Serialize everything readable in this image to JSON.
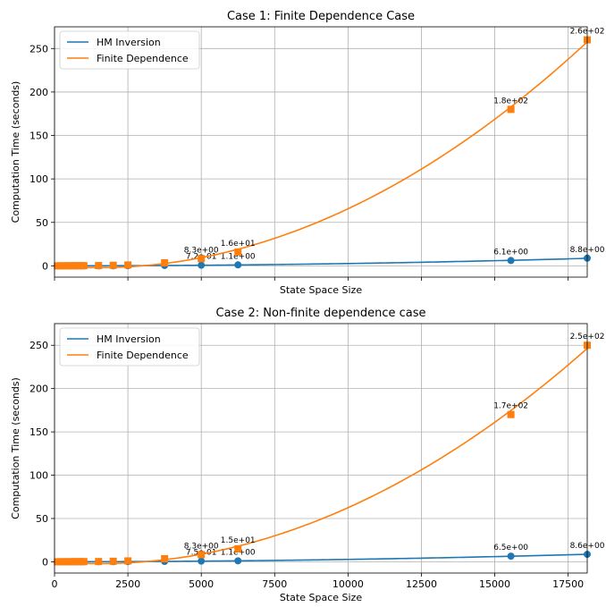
{
  "chart_data": [
    {
      "type": "line",
      "title": "Case 1: Finite Dependence Case",
      "xlabel": "State Space Size",
      "ylabel": "Computation Time (seconds)",
      "xlim": [
        0,
        18150
      ],
      "ylim": [
        -13,
        275
      ],
      "xticks": [
        0,
        2500,
        5000,
        7500,
        10000,
        12500,
        15000,
        17500
      ],
      "xticklabels": [],
      "yticks": [
        0,
        50,
        100,
        150,
        200,
        250
      ],
      "yticklabels": [
        "0",
        "50",
        "100",
        "150",
        "200",
        "250"
      ],
      "grid": true,
      "legend": "top-left",
      "series": [
        {
          "name": "HM Inversion",
          "color": "#1f77b4",
          "marker": "circle",
          "x": [
            100,
            200,
            300,
            400,
            500,
            600,
            700,
            800,
            900,
            1000,
            1500,
            2000,
            2500,
            3750,
            5000,
            6250,
            15550,
            18150
          ],
          "y": [
            0.001,
            0.002,
            0.003,
            0.005,
            0.008,
            0.01,
            0.015,
            0.02,
            0.025,
            0.03,
            0.05,
            0.1,
            0.2,
            0.4,
            0.72,
            1.1,
            6.1,
            8.8
          ],
          "labeled_points": [
            {
              "x": 5000,
              "y": 0.72,
              "label": "7.2e-01"
            },
            {
              "x": 6250,
              "y": 1.1,
              "label": "1.1e+00"
            },
            {
              "x": 15550,
              "y": 6.1,
              "label": "6.1e+00"
            },
            {
              "x": 18150,
              "y": 8.8,
              "label": "8.8e+00"
            }
          ]
        },
        {
          "name": "Finite Dependence",
          "color": "#ff7f0e",
          "marker": "square",
          "x": [
            100,
            200,
            300,
            400,
            500,
            600,
            700,
            800,
            900,
            1000,
            1500,
            2000,
            2500,
            3750,
            5000,
            6250,
            15550,
            18150
          ],
          "y": [
            0.01,
            0.02,
            0.03,
            0.05,
            0.07,
            0.1,
            0.12,
            0.15,
            0.18,
            0.2,
            0.3,
            0.6,
            1.0,
            3.5,
            8.3,
            16,
            180,
            260
          ],
          "labeled_points": [
            {
              "x": 5000,
              "y": 8.3,
              "label": "8.3e+00"
            },
            {
              "x": 6250,
              "y": 16,
              "label": "1.6e+01"
            },
            {
              "x": 15550,
              "y": 180,
              "label": "1.8e+02"
            },
            {
              "x": 18150,
              "y": 260,
              "label": "2.6e+02"
            }
          ]
        }
      ]
    },
    {
      "type": "line",
      "title": "Case 2: Non-finite dependence case",
      "xlabel": "State Space Size",
      "ylabel": "Computation Time (seconds)",
      "xlim": [
        0,
        18150
      ],
      "ylim": [
        -13,
        275
      ],
      "xticks": [
        0,
        2500,
        5000,
        7500,
        10000,
        12500,
        15000,
        17500
      ],
      "xticklabels": [
        "0",
        "2500",
        "5000",
        "7500",
        "10000",
        "12500",
        "15000",
        "17500"
      ],
      "yticks": [
        0,
        50,
        100,
        150,
        200,
        250
      ],
      "yticklabels": [
        "0",
        "50",
        "100",
        "150",
        "200",
        "250"
      ],
      "grid": true,
      "legend": "top-left",
      "series": [
        {
          "name": "HM Inversion",
          "color": "#1f77b4",
          "marker": "circle",
          "x": [
            100,
            200,
            300,
            400,
            500,
            600,
            700,
            800,
            900,
            1000,
            1500,
            2000,
            2500,
            3750,
            5000,
            6250,
            15550,
            18150
          ],
          "y": [
            0.001,
            0.002,
            0.003,
            0.005,
            0.008,
            0.01,
            0.015,
            0.02,
            0.025,
            0.03,
            0.05,
            0.1,
            0.2,
            0.4,
            0.75,
            1.1,
            6.5,
            8.6
          ],
          "labeled_points": [
            {
              "x": 5000,
              "y": 0.75,
              "label": "7.5e-01"
            },
            {
              "x": 6250,
              "y": 1.1,
              "label": "1.1e+00"
            },
            {
              "x": 15550,
              "y": 6.5,
              "label": "6.5e+00"
            },
            {
              "x": 18150,
              "y": 8.6,
              "label": "8.6e+00"
            }
          ]
        },
        {
          "name": "Finite Dependence",
          "color": "#ff7f0e",
          "marker": "square",
          "x": [
            100,
            200,
            300,
            400,
            500,
            600,
            700,
            800,
            900,
            1000,
            1500,
            2000,
            2500,
            3750,
            5000,
            6250,
            15550,
            18150
          ],
          "y": [
            0.01,
            0.02,
            0.03,
            0.05,
            0.07,
            0.1,
            0.12,
            0.15,
            0.18,
            0.2,
            0.3,
            0.6,
            1.0,
            3.5,
            8.3,
            15,
            170,
            250
          ],
          "labeled_points": [
            {
              "x": 5000,
              "y": 8.3,
              "label": "8.3e+00"
            },
            {
              "x": 6250,
              "y": 15,
              "label": "1.5e+01"
            },
            {
              "x": 15550,
              "y": 170,
              "label": "1.7e+02"
            },
            {
              "x": 18150,
              "y": 250,
              "label": "2.5e+02"
            }
          ]
        }
      ]
    }
  ]
}
